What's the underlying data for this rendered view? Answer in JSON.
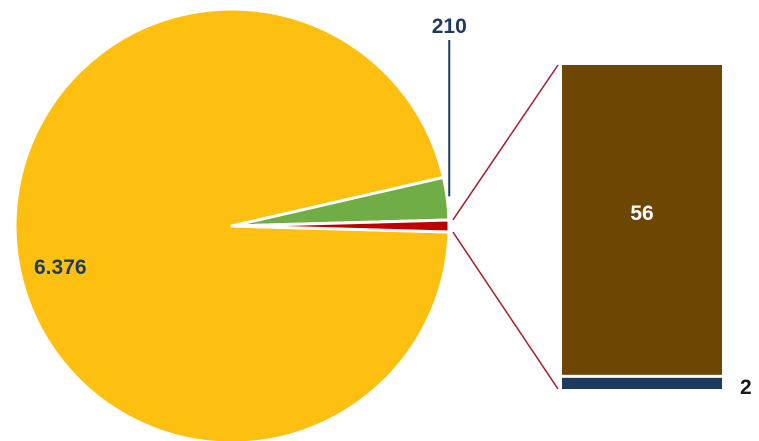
{
  "chart_data": {
    "type": "pie",
    "title": "",
    "slices": [
      {
        "label_text": "6.376",
        "value": 6376,
        "color": "#FDC010"
      },
      {
        "label_text": "210",
        "value": 210,
        "color": "#70AD47"
      },
      {
        "label_text": "",
        "value": 58,
        "color": "#C00000",
        "exploded_to_bar": true
      }
    ],
    "breakout_bar": {
      "type": "stacked-bar",
      "segments": [
        {
          "label_text": "56",
          "value": 56,
          "color": "#6E4604",
          "label_color": "#FFFFFF"
        },
        {
          "label_text": "2",
          "value": 2,
          "color": "#1F3A5F",
          "label_color": "#1A1A1A"
        }
      ]
    },
    "colors": {
      "label_dark": "#1F3A5F",
      "connector": "#A31C2E"
    },
    "legend": "none",
    "grid": false
  }
}
